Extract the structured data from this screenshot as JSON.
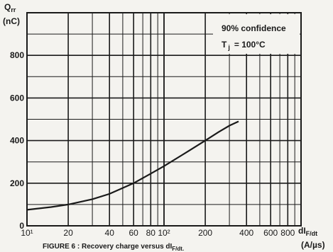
{
  "chart_data": {
    "type": "line",
    "x_scale": "log",
    "xlim": [
      10,
      1000
    ],
    "ylim": [
      0,
      1000
    ],
    "grid": true,
    "x_tick_labels": [
      "10¹",
      "20",
      "40",
      "60",
      "80",
      "10²",
      "200",
      "400",
      "600",
      "800"
    ],
    "x_tick_values": [
      10,
      20,
      40,
      60,
      80,
      100,
      200,
      400,
      600,
      800
    ],
    "y_tick_labels": [
      "0",
      "200",
      "400",
      "600",
      "800"
    ],
    "y_tick_values": [
      0,
      200,
      400,
      600,
      800
    ],
    "ylabel_line1": "Q",
    "ylabel_sub": "rr",
    "ylabel_unit": "(nC)",
    "xlabel_main": "dI",
    "xlabel_sub": "F/dt",
    "xlabel_unit": "(A/µs)",
    "annotation_line1": "90% confidence",
    "annotation_t": "T",
    "annotation_sub": "j",
    "annotation_value": "= 100°C",
    "caption": "FIGURE 6 : Recovery charge versus dI",
    "caption_sub": "F/dt.",
    "series": [
      {
        "x": [
          10,
          15,
          20,
          30,
          40,
          60,
          80,
          100,
          150,
          200,
          250,
          300,
          350
        ],
        "y": [
          75,
          88,
          100,
          125,
          150,
          200,
          245,
          280,
          350,
          400,
          440,
          470,
          490
        ]
      }
    ]
  }
}
